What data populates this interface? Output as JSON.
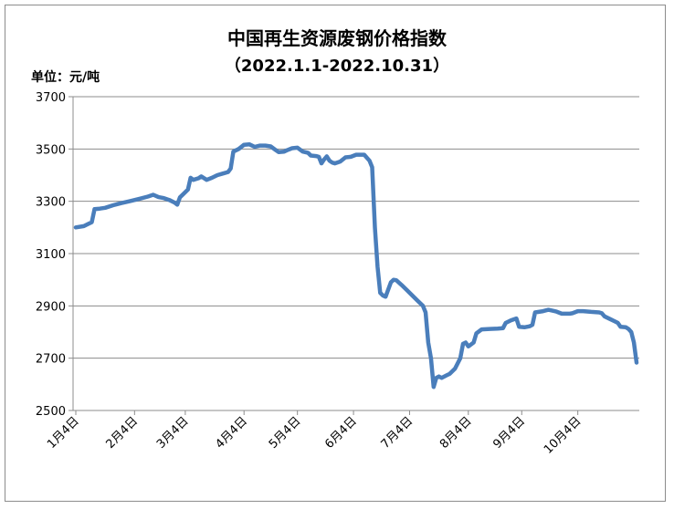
{
  "chart_data": {
    "type": "line",
    "title": "中国再生资源废钢价格指数",
    "subtitle": "（2022.1.1-2022.10.31）",
    "unit_label": "单位：元/吨",
    "ylim": [
      2500,
      3700
    ],
    "yticks": [
      "3700",
      "3500",
      "3300",
      "3100",
      "2900",
      "2700",
      "2500"
    ],
    "ytick_values": [
      3700,
      3500,
      3300,
      3100,
      2900,
      2700,
      2500
    ],
    "categories": [
      "1月4日",
      "2月4日",
      "3月4日",
      "4月4日",
      "5月4日",
      "6月4日",
      "7月4日",
      "8月4日",
      "9月4日",
      "10月4日"
    ],
    "category_index": [
      0,
      22,
      41,
      63,
      83,
      104,
      125,
      147,
      167,
      188
    ],
    "total_points": 211,
    "series": [
      {
        "color": "#4a7ebb",
        "points": [
          [
            0,
            3200
          ],
          [
            3,
            3205
          ],
          [
            5,
            3215
          ],
          [
            6,
            3220
          ],
          [
            7,
            3270
          ],
          [
            9,
            3272
          ],
          [
            11,
            3275
          ],
          [
            14,
            3285
          ],
          [
            17,
            3293
          ],
          [
            20,
            3300
          ],
          [
            24,
            3310
          ],
          [
            27,
            3318
          ],
          [
            29,
            3325
          ],
          [
            31,
            3316
          ],
          [
            33,
            3312
          ],
          [
            35,
            3305
          ],
          [
            37,
            3295
          ],
          [
            38,
            3287
          ],
          [
            39,
            3315
          ],
          [
            41,
            3335
          ],
          [
            42,
            3345
          ],
          [
            43,
            3390
          ],
          [
            44,
            3382
          ],
          [
            46,
            3388
          ],
          [
            47,
            3395
          ],
          [
            49,
            3382
          ],
          [
            51,
            3390
          ],
          [
            53,
            3400
          ],
          [
            55,
            3406
          ],
          [
            57,
            3412
          ],
          [
            58,
            3425
          ],
          [
            59,
            3490
          ],
          [
            61,
            3500
          ],
          [
            63,
            3516
          ],
          [
            65,
            3518
          ],
          [
            67,
            3508
          ],
          [
            69,
            3513
          ],
          [
            71,
            3513
          ],
          [
            73,
            3510
          ],
          [
            75,
            3495
          ],
          [
            76,
            3488
          ],
          [
            78,
            3490
          ],
          [
            79,
            3495
          ],
          [
            81,
            3503
          ],
          [
            83,
            3505
          ],
          [
            85,
            3490
          ],
          [
            87,
            3485
          ],
          [
            88,
            3475
          ],
          [
            90,
            3473
          ],
          [
            91,
            3470
          ],
          [
            92,
            3445
          ],
          [
            93,
            3460
          ],
          [
            94,
            3472
          ],
          [
            95,
            3455
          ],
          [
            96,
            3448
          ],
          [
            97,
            3445
          ],
          [
            99,
            3452
          ],
          [
            101,
            3468
          ],
          [
            103,
            3470
          ],
          [
            105,
            3478
          ],
          [
            107,
            3478
          ],
          [
            108,
            3478
          ],
          [
            110,
            3455
          ],
          [
            111,
            3430
          ],
          [
            112,
            3200
          ],
          [
            113,
            3050
          ],
          [
            114,
            2950
          ],
          [
            115,
            2940
          ],
          [
            116,
            2935
          ],
          [
            118,
            2990
          ],
          [
            119,
            3000
          ],
          [
            120,
            2998
          ],
          [
            122,
            2980
          ],
          [
            124,
            2960
          ],
          [
            126,
            2940
          ],
          [
            128,
            2920
          ],
          [
            130,
            2900
          ],
          [
            131,
            2875
          ],
          [
            132,
            2760
          ],
          [
            133,
            2700
          ],
          [
            134,
            2590
          ],
          [
            135,
            2625
          ],
          [
            136,
            2630
          ],
          [
            137,
            2625
          ],
          [
            139,
            2635
          ],
          [
            140,
            2640
          ],
          [
            142,
            2660
          ],
          [
            144,
            2700
          ],
          [
            145,
            2755
          ],
          [
            146,
            2760
          ],
          [
            147,
            2745
          ],
          [
            149,
            2760
          ],
          [
            150,
            2795
          ],
          [
            152,
            2810
          ],
          [
            155,
            2812
          ],
          [
            158,
            2813
          ],
          [
            160,
            2815
          ],
          [
            161,
            2835
          ],
          [
            163,
            2845
          ],
          [
            165,
            2852
          ],
          [
            166,
            2820
          ],
          [
            168,
            2818
          ],
          [
            170,
            2822
          ],
          [
            171,
            2828
          ],
          [
            172,
            2875
          ],
          [
            175,
            2880
          ],
          [
            177,
            2885
          ],
          [
            180,
            2878
          ],
          [
            182,
            2870
          ],
          [
            185,
            2870
          ],
          [
            186,
            2872
          ],
          [
            188,
            2880
          ],
          [
            190,
            2880
          ],
          [
            193,
            2877
          ],
          [
            196,
            2875
          ],
          [
            197,
            2872
          ],
          [
            198,
            2860
          ],
          [
            200,
            2850
          ],
          [
            202,
            2840
          ],
          [
            203,
            2835
          ],
          [
            204,
            2820
          ],
          [
            206,
            2818
          ],
          [
            207,
            2812
          ],
          [
            208,
            2800
          ],
          [
            209,
            2760
          ],
          [
            210,
            2683
          ]
        ]
      }
    ]
  }
}
